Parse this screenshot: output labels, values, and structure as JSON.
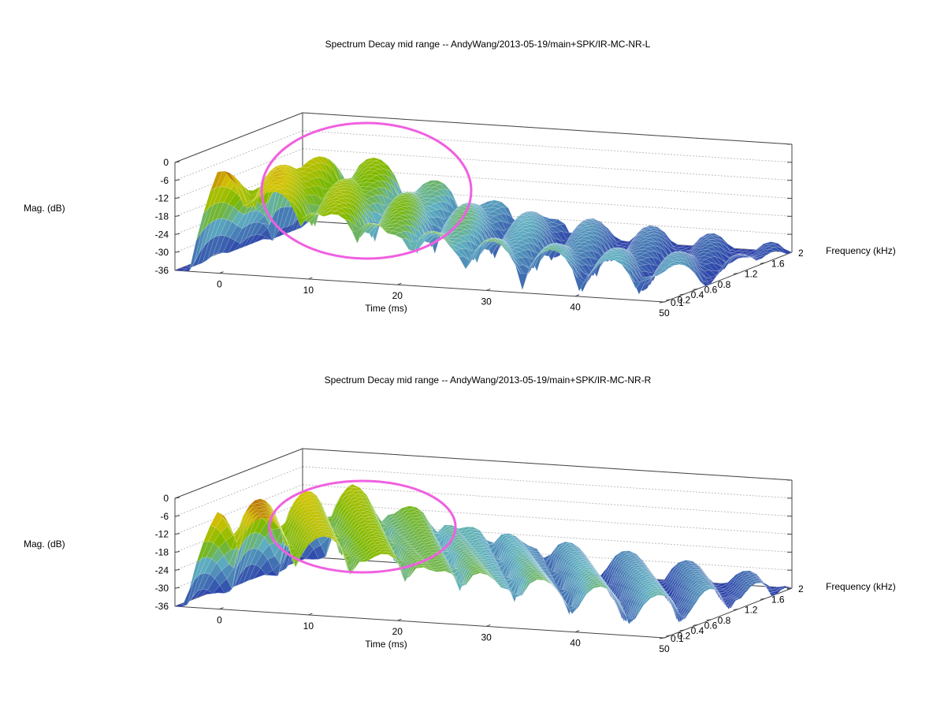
{
  "chart_data": [
    {
      "type": "surface",
      "title": "Spectrum Decay mid range -- AndyWang/2013-05-19/main+SPK/IR-MC-NR-L",
      "xlabel": "Time (ms)",
      "ylabel": "Frequency (kHz)",
      "zlabel": "Mag. (dB)",
      "x_ticks": [
        "0",
        "10",
        "20",
        "30",
        "40",
        "50"
      ],
      "y_ticks": [
        "0.1",
        "0.2",
        "0.4",
        "0.6",
        "0.8",
        "1.2",
        "1.6",
        "2"
      ],
      "z_ticks": [
        "0",
        "-6",
        "-12",
        "-18",
        "-24",
        "-30",
        "-36"
      ],
      "xlim": [
        -5,
        50
      ],
      "ylim": [
        0.1,
        2
      ],
      "zlim": [
        -36,
        0
      ],
      "highlight_ellipse_color": "#f060e0"
    },
    {
      "type": "surface",
      "title": "Spectrum Decay mid range -- AndyWang/2013-05-19/main+SPK/IR-MC-NR-R",
      "xlabel": "Time (ms)",
      "ylabel": "Frequency (kHz)",
      "zlabel": "Mag. (dB)",
      "x_ticks": [
        "0",
        "10",
        "20",
        "30",
        "40",
        "50"
      ],
      "y_ticks": [
        "0.1",
        "0.2",
        "0.4",
        "0.6",
        "0.8",
        "1.2",
        "1.6",
        "2"
      ],
      "z_ticks": [
        "0",
        "-6",
        "-12",
        "-18",
        "-24",
        "-30",
        "-36"
      ],
      "xlim": [
        -5,
        50
      ],
      "ylim": [
        0.1,
        2
      ],
      "zlim": [
        -36,
        0
      ],
      "highlight_ellipse_color": "#f060e0"
    }
  ],
  "colors": {
    "low": "#2a3ea8",
    "mid_low": "#5fb0c0",
    "mid": "#7ab800",
    "mid_high": "#d4c400",
    "high": "#9a1a0a",
    "grid": "#bdbdbd",
    "axis": "#444444"
  }
}
